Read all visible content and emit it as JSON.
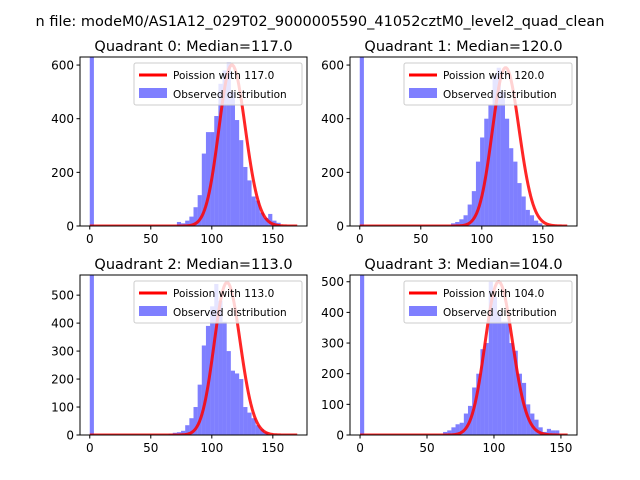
{
  "suptitle": "n file: modeM0/AS1A12_029T02_9000005590_41052cztM0_level2_quad_clean",
  "colors": {
    "hist": "#0000ff",
    "poisson": "#ff0000"
  },
  "chart_data": [
    {
      "type": "bar",
      "title": "Quadrant 0: Median=117.0",
      "legend": [
        "Poission with 117.0",
        "Observed distribution"
      ],
      "legend_position": "upper-right",
      "xlim": [
        -8,
        178
      ],
      "ylim": [
        0,
        630
      ],
      "xticks": [
        0,
        50,
        100,
        150
      ],
      "yticks": [
        0,
        200,
        400,
        600
      ],
      "bin_width": 3.4,
      "counts": [
        700,
        0,
        0,
        0,
        0,
        0,
        0,
        0,
        0,
        0,
        0,
        0,
        0,
        0,
        0,
        0,
        0,
        0,
        0,
        0,
        0,
        15,
        10,
        20,
        35,
        70,
        115,
        270,
        350,
        350,
        410,
        530,
        580,
        610,
        500,
        395,
        320,
        220,
        170,
        110,
        95,
        50,
        30,
        45,
        20,
        12,
        0,
        0,
        0,
        0
      ],
      "poisson_lambda": 117,
      "poisson_peak": 600,
      "poisson_xmax": 170
    },
    {
      "type": "bar",
      "title": "Quadrant 1: Median=120.0",
      "legend": [
        "Poission with 120.0",
        "Observed distribution"
      ],
      "legend_position": "upper-right",
      "xlim": [
        -8,
        178
      ],
      "ylim": [
        0,
        630
      ],
      "xticks": [
        0,
        50,
        100,
        150
      ],
      "yticks": [
        0,
        200,
        400,
        600
      ],
      "bin_width": 3.4,
      "counts": [
        700,
        0,
        0,
        0,
        0,
        0,
        0,
        0,
        0,
        0,
        0,
        0,
        0,
        0,
        0,
        0,
        0,
        0,
        0,
        0,
        0,
        0,
        10,
        15,
        25,
        40,
        80,
        130,
        240,
        330,
        400,
        450,
        560,
        590,
        500,
        400,
        290,
        240,
        160,
        110,
        60,
        40,
        20,
        10,
        0,
        0,
        0,
        0,
        0,
        0
      ],
      "poisson_lambda": 120,
      "poisson_peak": 590,
      "poisson_xmax": 170
    },
    {
      "type": "bar",
      "title": "Quadrant 2: Median=113.0",
      "legend": [
        "Poission with 113.0",
        "Observed distribution"
      ],
      "legend_position": "upper-right",
      "xlim": [
        -8,
        178
      ],
      "ylim": [
        0,
        572
      ],
      "xticks": [
        0,
        50,
        100,
        150
      ],
      "yticks": [
        0,
        100,
        200,
        300,
        400,
        500
      ],
      "bin_width": 3.4,
      "counts": [
        700,
        0,
        0,
        0,
        0,
        0,
        0,
        0,
        0,
        0,
        0,
        0,
        0,
        0,
        0,
        0,
        0,
        0,
        0,
        5,
        8,
        10,
        15,
        35,
        60,
        100,
        180,
        320,
        390,
        460,
        540,
        480,
        405,
        300,
        230,
        220,
        200,
        100,
        80,
        60,
        35,
        20,
        10,
        0,
        0,
        0,
        0,
        0,
        0,
        0
      ],
      "poisson_lambda": 113,
      "poisson_peak": 545,
      "poisson_xmax": 170
    },
    {
      "type": "bar",
      "title": "Quadrant 3: Median=104.0",
      "legend": [
        "Poission with 104.0",
        "Observed distribution"
      ],
      "legend_position": "upper-right",
      "xlim": [
        -7.5,
        162
      ],
      "ylim": [
        0,
        522
      ],
      "xticks": [
        0,
        50,
        100,
        150
      ],
      "yticks": [
        0,
        100,
        200,
        300,
        400,
        500
      ],
      "bin_width": 3.1,
      "counts": [
        600,
        0,
        0,
        0,
        0,
        0,
        0,
        0,
        0,
        0,
        0,
        0,
        0,
        0,
        0,
        0,
        0,
        0,
        0,
        0,
        10,
        15,
        25,
        35,
        40,
        70,
        95,
        155,
        200,
        280,
        300,
        500,
        450,
        400,
        370,
        370,
        300,
        275,
        200,
        170,
        100,
        70,
        50,
        25,
        10,
        20,
        15,
        15,
        0,
        0
      ],
      "poisson_lambda": 104,
      "poisson_peak": 500,
      "poisson_xmax": 155
    }
  ]
}
